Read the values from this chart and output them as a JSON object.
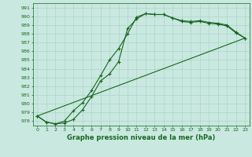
{
  "title": "Graphe pression niveau de la mer (hPa)",
  "xlim": [
    -0.5,
    23.5
  ],
  "ylim": [
    977.5,
    991.5
  ],
  "yticks": [
    978,
    979,
    980,
    981,
    982,
    983,
    984,
    985,
    986,
    987,
    988,
    989,
    990,
    991
  ],
  "xticks": [
    0,
    1,
    2,
    3,
    4,
    5,
    6,
    7,
    8,
    9,
    10,
    11,
    12,
    13,
    14,
    15,
    16,
    17,
    18,
    19,
    20,
    21,
    22,
    23
  ],
  "bg_color": "#c8e8e0",
  "line_color": "#1a6620",
  "series1_x": [
    0,
    1,
    2,
    3,
    4,
    5,
    6,
    7,
    8,
    9,
    10,
    11,
    12,
    13,
    14,
    15,
    16,
    17,
    18,
    19,
    20,
    21,
    22,
    23
  ],
  "series1_y": [
    978.6,
    977.9,
    977.7,
    977.8,
    978.2,
    979.3,
    980.8,
    982.6,
    983.4,
    984.8,
    988.6,
    989.7,
    990.3,
    990.2,
    990.2,
    989.8,
    989.4,
    989.3,
    989.4,
    989.2,
    989.1,
    988.9,
    988.1,
    987.5
  ],
  "series2_x": [
    0,
    1,
    2,
    3,
    4,
    5,
    6,
    7,
    8,
    9,
    10,
    11,
    12,
    13,
    14,
    15,
    16,
    17,
    18,
    19,
    20,
    21,
    22,
    23
  ],
  "series2_y": [
    978.6,
    977.9,
    977.7,
    978.0,
    979.2,
    980.1,
    981.5,
    983.2,
    985.0,
    986.3,
    988.0,
    989.9,
    990.3,
    990.2,
    990.2,
    989.8,
    989.5,
    989.4,
    989.5,
    989.3,
    989.2,
    989.0,
    988.2,
    987.5
  ],
  "series3_x": [
    0,
    23
  ],
  "series3_y": [
    978.6,
    987.5
  ],
  "marker": "+"
}
